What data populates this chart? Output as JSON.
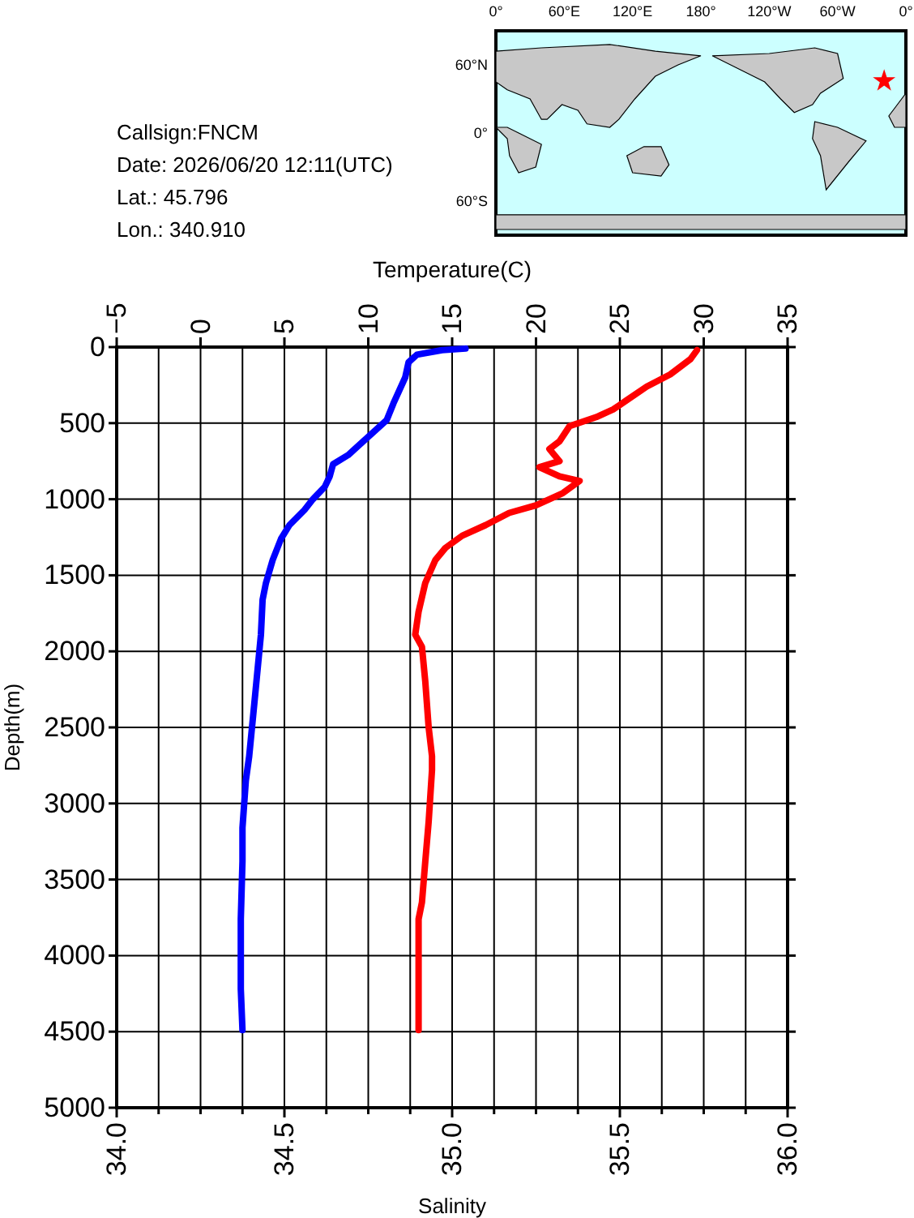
{
  "chart_data": {
    "type": "line",
    "xlabel": "Salinity",
    "x2label": "Temperature(C)",
    "ylabel": "Depth(m)",
    "xlim": [
      34,
      36
    ],
    "xticks": [
      {
        "value": 34,
        "label": "34.0"
      },
      {
        "value": 34.125,
        "label": null
      },
      {
        "value": 34.25,
        "label": null
      },
      {
        "value": 34.375,
        "label": null
      },
      {
        "value": 34.5,
        "label": "34.5"
      },
      {
        "value": 34.625,
        "label": null
      },
      {
        "value": 34.75,
        "label": null
      },
      {
        "value": 34.875,
        "label": null
      },
      {
        "value": 35,
        "label": "35.0"
      },
      {
        "value": 35.125,
        "label": null
      },
      {
        "value": 35.25,
        "label": null
      },
      {
        "value": 35.375,
        "label": null
      },
      {
        "value": 35.5,
        "label": "35.5"
      },
      {
        "value": 35.625,
        "label": null
      },
      {
        "value": 35.75,
        "label": null
      },
      {
        "value": 35.875,
        "label": null
      },
      {
        "value": 36,
        "label": "36.0"
      }
    ],
    "x2lim": [
      -5,
      35
    ],
    "x2ticks": [
      {
        "value": -5,
        "label": "−5"
      },
      0,
      5,
      10,
      15,
      20,
      25,
      30,
      35
    ],
    "ylim": [
      5000,
      0
    ],
    "yticks": [
      0,
      500,
      1000,
      1500,
      2000,
      2500,
      3000,
      3500,
      4000,
      4500,
      5000
    ],
    "grid": true,
    "line_style": "solid",
    "series": [
      {
        "color": "#0000ff",
        "axis": "x2",
        "x": [
          15.8,
          14.4,
          12.9,
          12.4,
          12.2,
          11.5,
          11.1,
          10.1,
          9.3,
          8.8,
          7.9,
          7.7,
          7.4,
          6.7,
          6.2,
          5.3,
          4.8,
          4.3,
          3.9,
          3.7,
          3.6,
          3.4,
          3.2,
          2.9,
          2.7,
          2.5,
          2.5,
          2.4,
          2.4,
          2.5
        ],
        "values": [
          10,
          20,
          50,
          100,
          200,
          370,
          480,
          580,
          660,
          710,
          770,
          850,
          920,
          1000,
          1070,
          1170,
          1260,
          1400,
          1550,
          1660,
          1890,
          2120,
          2350,
          2690,
          2850,
          3160,
          3380,
          3760,
          4220,
          4490
        ]
      },
      {
        "color": "#ff0000",
        "x": [
          35.73,
          35.71,
          35.65,
          35.58,
          35.52,
          35.48,
          35.43,
          35.35,
          35.32,
          35.29,
          35.32,
          35.26,
          35.32,
          35.38,
          35.33,
          35.25,
          35.17,
          35.1,
          35.03,
          34.98,
          34.95,
          34.92,
          34.9,
          34.89,
          34.91,
          34.92,
          34.93,
          34.94,
          34.94,
          34.93,
          34.92,
          34.91,
          34.9,
          34.9
        ],
        "values": [
          20,
          80,
          180,
          260,
          350,
          410,
          460,
          520,
          620,
          670,
          750,
          790,
          850,
          880,
          960,
          1040,
          1090,
          1170,
          1240,
          1320,
          1400,
          1550,
          1740,
          1890,
          1970,
          2200,
          2500,
          2690,
          2780,
          3120,
          3380,
          3650,
          3760,
          4490
        ]
      }
    ],
    "annotations": [
      "Callsign:FNCM",
      "Date:  2026/06/20 12:11(UTC)",
      "Lat.:  45.796",
      "Lon.:  340.910",
      "0°",
      "60°E",
      "120°E",
      "180°",
      "120°W",
      "60°W",
      "0°",
      "60°N",
      "0°",
      "60°S"
    ]
  }
}
